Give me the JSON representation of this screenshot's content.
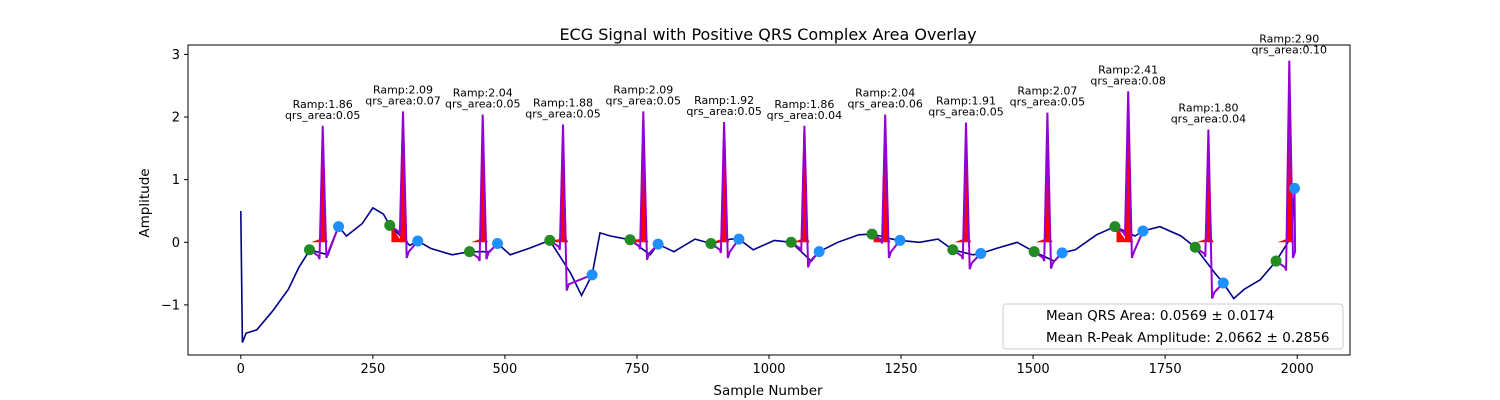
{
  "chart_data": {
    "type": "line",
    "title": "ECG Signal with Positive QRS Complex Area Overlay",
    "xlabel": "Sample Number",
    "ylabel": "Amplitude",
    "xlim": [
      -100,
      2100
    ],
    "ylim": [
      -1.8,
      3.15
    ],
    "xticks": [
      0,
      250,
      500,
      750,
      1000,
      1250,
      1500,
      1750,
      2000
    ],
    "yticks": [
      -1,
      0,
      1,
      2,
      3
    ],
    "grid": false,
    "colors": {
      "signal": "#00008b",
      "qrs_segment": "#9400d3",
      "qrs_fill": "#ff0000",
      "onset_marker": "#228b22",
      "offset_marker": "#1e90ff"
    },
    "beats": [
      {
        "r_x": 155,
        "r_amp": 1.86,
        "qrs_area": 0.05,
        "onset": [
          130,
          -0.12
        ],
        "offset": [
          185,
          0.25
        ],
        "label": [
          "Ramp:1.86",
          "qrs_area:0.05"
        ]
      },
      {
        "r_x": 307,
        "r_amp": 2.09,
        "qrs_area": 0.07,
        "onset": [
          282,
          0.27
        ],
        "offset": [
          335,
          0.02
        ],
        "label": [
          "Ramp:2.09",
          "qrs_area:0.07"
        ]
      },
      {
        "r_x": 458,
        "r_amp": 2.04,
        "qrs_area": 0.05,
        "onset": [
          433,
          -0.15
        ],
        "offset": [
          486,
          -0.02
        ],
        "label": [
          "Ramp:2.04",
          "qrs_area:0.05"
        ]
      },
      {
        "r_x": 610,
        "r_amp": 1.88,
        "qrs_area": 0.05,
        "onset": [
          585,
          0.03
        ],
        "offset": [
          665,
          -0.52
        ],
        "label": [
          "Ramp:1.88",
          "qrs_area:0.05"
        ]
      },
      {
        "r_x": 762,
        "r_amp": 2.09,
        "qrs_area": 0.05,
        "onset": [
          737,
          0.04
        ],
        "offset": [
          790,
          -0.03
        ],
        "label": [
          "Ramp:2.09",
          "qrs_area:0.05"
        ]
      },
      {
        "r_x": 915,
        "r_amp": 1.92,
        "qrs_area": 0.05,
        "onset": [
          890,
          -0.02
        ],
        "offset": [
          943,
          0.05
        ],
        "label": [
          "Ramp:1.92",
          "qrs_area:0.05"
        ]
      },
      {
        "r_x": 1067,
        "r_amp": 1.86,
        "qrs_area": 0.04,
        "onset": [
          1042,
          0.0
        ],
        "offset": [
          1095,
          -0.15
        ],
        "label": [
          "Ramp:1.86",
          "qrs_area:0.04"
        ]
      },
      {
        "r_x": 1220,
        "r_amp": 2.04,
        "qrs_area": 0.06,
        "onset": [
          1195,
          0.13
        ],
        "offset": [
          1248,
          0.03
        ],
        "label": [
          "Ramp:2.04",
          "qrs_area:0.06"
        ]
      },
      {
        "r_x": 1373,
        "r_amp": 1.91,
        "qrs_area": 0.05,
        "onset": [
          1348,
          -0.12
        ],
        "offset": [
          1401,
          -0.18
        ],
        "label": [
          "Ramp:1.91",
          "qrs_area:0.05"
        ]
      },
      {
        "r_x": 1527,
        "r_amp": 2.07,
        "qrs_area": 0.05,
        "onset": [
          1502,
          -0.15
        ],
        "offset": [
          1555,
          -0.17
        ],
        "label": [
          "Ramp:2.07",
          "qrs_area:0.05"
        ]
      },
      {
        "r_x": 1680,
        "r_amp": 2.41,
        "qrs_area": 0.08,
        "onset": [
          1655,
          0.25
        ],
        "offset": [
          1708,
          0.18
        ],
        "label": [
          "Ramp:2.41",
          "qrs_area:0.08"
        ]
      },
      {
        "r_x": 1832,
        "r_amp": 1.8,
        "qrs_area": 0.04,
        "onset": [
          1807,
          -0.08
        ],
        "offset": [
          1860,
          -0.65
        ],
        "label": [
          "Ramp:1.80",
          "qrs_area:0.04"
        ]
      },
      {
        "r_x": 1985,
        "r_amp": 2.9,
        "qrs_area": 0.1,
        "onset": [
          1960,
          -0.3
        ],
        "offset": [
          1995,
          0.86
        ],
        "label": [
          "Ramp:2.90",
          "qrs_area:0.10"
        ]
      }
    ],
    "baseline_points": [
      [
        0,
        0.5
      ],
      [
        3,
        -1.6
      ],
      [
        10,
        -1.45
      ],
      [
        30,
        -1.4
      ],
      [
        60,
        -1.1
      ],
      [
        90,
        -0.75
      ],
      [
        110,
        -0.4
      ],
      [
        125,
        -0.2
      ],
      [
        130,
        -0.12
      ],
      [
        165,
        -0.2
      ],
      [
        185,
        0.25
      ],
      [
        200,
        0.1
      ],
      [
        230,
        0.3
      ],
      [
        250,
        0.55
      ],
      [
        270,
        0.45
      ],
      [
        282,
        0.27
      ],
      [
        320,
        -0.05
      ],
      [
        335,
        0.02
      ],
      [
        360,
        -0.1
      ],
      [
        400,
        -0.2
      ],
      [
        433,
        -0.15
      ],
      [
        470,
        -0.15
      ],
      [
        486,
        -0.02
      ],
      [
        510,
        -0.2
      ],
      [
        545,
        -0.1
      ],
      [
        585,
        0.03
      ],
      [
        625,
        -0.5
      ],
      [
        645,
        -0.85
      ],
      [
        665,
        -0.52
      ],
      [
        680,
        0.15
      ],
      [
        700,
        0.1
      ],
      [
        737,
        0.04
      ],
      [
        775,
        -0.2
      ],
      [
        790,
        -0.03
      ],
      [
        820,
        -0.15
      ],
      [
        860,
        0.05
      ],
      [
        890,
        -0.02
      ],
      [
        928,
        0.05
      ],
      [
        943,
        0.05
      ],
      [
        970,
        -0.12
      ],
      [
        1010,
        0.03
      ],
      [
        1042,
        0.0
      ],
      [
        1080,
        -0.3
      ],
      [
        1095,
        -0.15
      ],
      [
        1130,
        0.0
      ],
      [
        1170,
        0.12
      ],
      [
        1195,
        0.13
      ],
      [
        1233,
        0.05
      ],
      [
        1248,
        0.03
      ],
      [
        1285,
        0.0
      ],
      [
        1320,
        0.05
      ],
      [
        1348,
        -0.12
      ],
      [
        1386,
        -0.2
      ],
      [
        1401,
        -0.18
      ],
      [
        1430,
        -0.1
      ],
      [
        1470,
        0.0
      ],
      [
        1502,
        -0.15
      ],
      [
        1540,
        -0.3
      ],
      [
        1555,
        -0.17
      ],
      [
        1580,
        -0.12
      ],
      [
        1620,
        0.12
      ],
      [
        1655,
        0.25
      ],
      [
        1693,
        0.1
      ],
      [
        1708,
        0.18
      ],
      [
        1740,
        0.25
      ],
      [
        1780,
        0.1
      ],
      [
        1807,
        -0.08
      ],
      [
        1845,
        -0.5
      ],
      [
        1860,
        -0.65
      ],
      [
        1880,
        -0.9
      ],
      [
        1900,
        -0.75
      ],
      [
        1930,
        -0.6
      ],
      [
        1960,
        -0.3
      ],
      [
        1990,
        0.1
      ],
      [
        1995,
        0.86
      ],
      [
        1998,
        0.86
      ]
    ],
    "legend": {
      "position": "lower right",
      "entries": [
        "Mean QRS Area: 0.0569 ± 0.0174",
        "Mean R-Peak Amplitude: 2.0662 ± 0.2856"
      ]
    }
  }
}
